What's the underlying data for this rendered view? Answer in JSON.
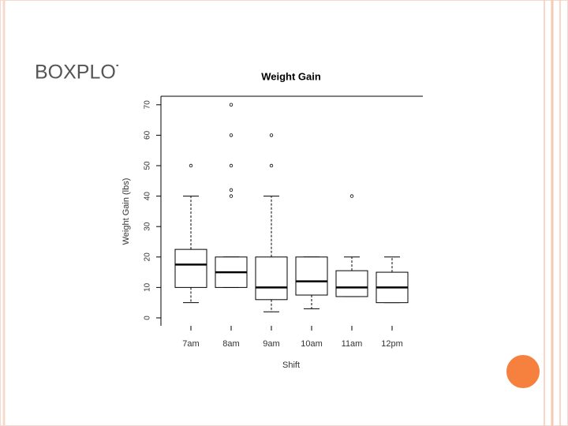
{
  "slide": {
    "title": "BOXPLOT"
  },
  "chart_data": {
    "type": "box",
    "title": "Weight Gain",
    "x_label": "Shift",
    "y_label": "Weight Gain (lbs)",
    "categories": [
      "7am",
      "8am",
      "9am",
      "10am",
      "11am",
      "12pm"
    ],
    "boxes": [
      {
        "min": 5,
        "q1": 10,
        "median": 17.5,
        "q3": 22.5,
        "max": 40,
        "outliers": [
          50
        ]
      },
      {
        "min": 10,
        "q1": 10,
        "median": 15,
        "q3": 20,
        "max": 20,
        "outliers": [
          70,
          60,
          50,
          42,
          40
        ]
      },
      {
        "min": 2,
        "q1": 6,
        "median": 10,
        "q3": 20,
        "max": 40,
        "outliers": [
          60,
          50
        ]
      },
      {
        "min": 3,
        "q1": 7.5,
        "median": 12,
        "q3": 20,
        "max": 20,
        "outliers": []
      },
      {
        "min": 7,
        "q1": 7,
        "median": 10,
        "q3": 15.5,
        "max": 20,
        "outliers": [
          40
        ]
      },
      {
        "min": 5,
        "q1": 5,
        "median": 10,
        "q3": 15,
        "max": 20,
        "outliers": []
      }
    ],
    "ylim": [
      -2.6,
      72.8
    ],
    "yticks": [
      0,
      10,
      20,
      30,
      40,
      50,
      60,
      70
    ],
    "color": "#000000"
  }
}
